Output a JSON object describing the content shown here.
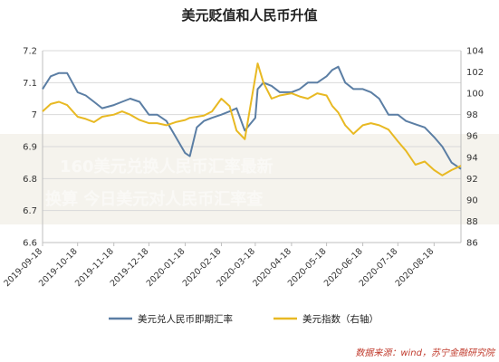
{
  "title": "美元贬值和人民币升值",
  "source": "数据来源：wind，苏宁金融研究院",
  "overlay_text": [
    "160美元兑换人民币汇率最新",
    "换算 今日美元对人民币汇率查"
  ],
  "colors": {
    "cny": "#5b7ea4",
    "dxy": "#e8b923",
    "grid": "#d9d9d9",
    "band": "#ece9de"
  },
  "chart_data": {
    "type": "line",
    "title": "美元贬值和人民币升值",
    "x_tick_labels": [
      "2019-09-18",
      "2019-10-18",
      "2019-11-18",
      "2019-12-18",
      "2020-01-18",
      "2020-02-18",
      "2020-03-18",
      "2020-04-18",
      "2020-05-18",
      "2020-06-18",
      "2020-07-18",
      "2020-08-18"
    ],
    "y_left": {
      "ticks": [
        "6.6",
        "6.7",
        "6.8",
        "6.9",
        "7",
        "7.1",
        "7.2"
      ],
      "range": [
        6.6,
        7.2
      ]
    },
    "y_right": {
      "ticks": [
        "86",
        "88",
        "90",
        "92",
        "94",
        "96",
        "98",
        "100",
        "102",
        "104"
      ],
      "range": [
        86,
        104
      ]
    },
    "grid": "horizontal",
    "legend_position": "bottom",
    "series": [
      {
        "name": "美元兑人民币即期汇率",
        "axis": "left",
        "x": [
          "2019-09-18",
          "2019-09-25",
          "2019-10-02",
          "2019-10-09",
          "2019-10-18",
          "2019-10-25",
          "2019-11-01",
          "2019-11-08",
          "2019-11-18",
          "2019-11-25",
          "2019-12-02",
          "2019-12-10",
          "2019-12-18",
          "2019-12-25",
          "2020-01-02",
          "2020-01-10",
          "2020-01-18",
          "2020-01-22",
          "2020-01-28",
          "2020-02-03",
          "2020-02-10",
          "2020-02-18",
          "2020-02-25",
          "2020-03-02",
          "2020-03-09",
          "2020-03-18",
          "2020-03-20",
          "2020-03-25",
          "2020-04-01",
          "2020-04-08",
          "2020-04-18",
          "2020-04-25",
          "2020-05-02",
          "2020-05-10",
          "2020-05-18",
          "2020-05-23",
          "2020-05-28",
          "2020-06-03",
          "2020-06-10",
          "2020-06-18",
          "2020-06-25",
          "2020-07-02",
          "2020-07-10",
          "2020-07-18",
          "2020-07-25",
          "2020-08-02",
          "2020-08-10",
          "2020-08-18",
          "2020-08-25",
          "2020-09-02",
          "2020-09-10"
        ],
        "values": [
          7.08,
          7.12,
          7.13,
          7.13,
          7.07,
          7.06,
          7.04,
          7.02,
          7.03,
          7.04,
          7.05,
          7.04,
          7.0,
          7.0,
          6.98,
          6.93,
          6.88,
          6.87,
          6.96,
          6.98,
          6.99,
          7.0,
          7.01,
          7.02,
          6.95,
          6.99,
          7.08,
          7.1,
          7.09,
          7.07,
          7.07,
          7.08,
          7.1,
          7.1,
          7.12,
          7.14,
          7.15,
          7.1,
          7.08,
          7.08,
          7.07,
          7.05,
          7.0,
          7.0,
          6.98,
          6.97,
          6.96,
          6.93,
          6.9,
          6.85,
          6.83
        ]
      },
      {
        "name": "美元指数（右轴）",
        "axis": "right",
        "x": [
          "2019-09-18",
          "2019-09-25",
          "2019-10-02",
          "2019-10-09",
          "2019-10-18",
          "2019-10-25",
          "2019-11-01",
          "2019-11-08",
          "2019-11-18",
          "2019-11-25",
          "2019-12-02",
          "2019-12-10",
          "2019-12-18",
          "2019-12-25",
          "2020-01-02",
          "2020-01-10",
          "2020-01-18",
          "2020-01-22",
          "2020-01-28",
          "2020-02-03",
          "2020-02-10",
          "2020-02-18",
          "2020-02-25",
          "2020-03-02",
          "2020-03-09",
          "2020-03-18",
          "2020-03-20",
          "2020-03-25",
          "2020-04-01",
          "2020-04-08",
          "2020-04-18",
          "2020-04-25",
          "2020-05-02",
          "2020-05-10",
          "2020-05-18",
          "2020-05-23",
          "2020-05-28",
          "2020-06-03",
          "2020-06-10",
          "2020-06-18",
          "2020-06-25",
          "2020-07-02",
          "2020-07-10",
          "2020-07-18",
          "2020-07-25",
          "2020-08-02",
          "2020-08-10",
          "2020-08-18",
          "2020-08-25",
          "2020-09-02",
          "2020-09-10"
        ],
        "values": [
          98.3,
          99.0,
          99.2,
          98.9,
          97.8,
          97.6,
          97.3,
          97.8,
          98.0,
          98.3,
          98.0,
          97.5,
          97.2,
          97.2,
          97.0,
          97.3,
          97.5,
          97.7,
          97.8,
          97.9,
          98.3,
          99.5,
          98.8,
          96.5,
          95.7,
          101.5,
          102.8,
          101.0,
          99.5,
          99.8,
          100.0,
          99.7,
          99.5,
          100.0,
          99.8,
          98.8,
          98.2,
          97.0,
          96.2,
          97.0,
          97.2,
          97.0,
          96.6,
          95.5,
          94.6,
          93.3,
          93.6,
          92.8,
          92.3,
          92.8,
          93.2
        ]
      }
    ]
  }
}
